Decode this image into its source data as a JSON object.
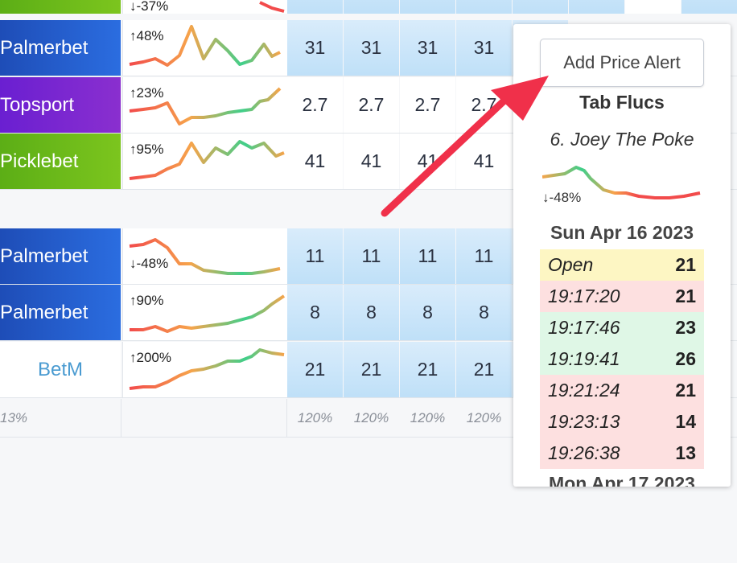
{
  "rows": [
    {
      "bookmaker": "Palmerbet",
      "change": "↑48%",
      "odds": [
        "31",
        "31",
        "31",
        "31"
      ],
      "color_from": "#1e4db7",
      "color_to": "#2b6de0",
      "style": "blue"
    },
    {
      "bookmaker": "Topsport",
      "change": "↑23%",
      "odds": [
        "2.7",
        "2.7",
        "2.7",
        "2.7"
      ],
      "color_from": "#6a1fd1",
      "color_to": "#8a2fcf",
      "style": "white"
    },
    {
      "bookmaker": "Picklebet",
      "change": "↑95%",
      "odds": [
        "41",
        "41",
        "41",
        "41"
      ],
      "color_from": "#5cae16",
      "color_to": "#7cc51e",
      "style": "white"
    },
    {
      "bookmaker": "Palmerbet",
      "change": "↓-48%",
      "odds": [
        "11",
        "11",
        "11",
        "11"
      ],
      "color_from": "#1e4db7",
      "color_to": "#2b6de0",
      "style": "blue"
    },
    {
      "bookmaker": "Palmerbet",
      "change": "↑90%",
      "odds": [
        "8",
        "8",
        "8",
        "8"
      ],
      "color_from": "#1e4db7",
      "color_to": "#2b6de0",
      "style": "blue"
    },
    {
      "bookmaker": "BetM",
      "change": "↑200%",
      "odds": [
        "21",
        "21",
        "21",
        "21"
      ],
      "color_from": "#ffffff",
      "color_to": "#ffffff",
      "style": "blue"
    }
  ],
  "top_partial": {
    "change": "↓-37%"
  },
  "footer": {
    "first": "13%",
    "markets": [
      "120%",
      "120%",
      "120%",
      "120%"
    ]
  },
  "popup": {
    "alert_button": "Add Price Alert",
    "title": "Tab Flucs",
    "runner": "6. Joey The Poke",
    "change": "↓-48%",
    "date1": "Sun Apr 16 2023",
    "date2": "Mon Apr 17 2023",
    "flucs": [
      {
        "time": "Open",
        "value": "21",
        "bg": "#fdf6c3"
      },
      {
        "time": "19:17:20",
        "value": "21",
        "bg": "#fde0e0"
      },
      {
        "time": "19:17:46",
        "value": "23",
        "bg": "#dff7e6"
      },
      {
        "time": "19:19:41",
        "value": "26",
        "bg": "#dff7e6"
      },
      {
        "time": "19:21:24",
        "value": "21",
        "bg": "#fde0e0"
      },
      {
        "time": "19:23:13",
        "value": "14",
        "bg": "#fde0e0"
      },
      {
        "time": "19:26:38",
        "value": "13",
        "bg": "#fde0e0"
      }
    ]
  },
  "colors": {
    "arrow": "#f0304a",
    "betm_text": "#4a9bd1"
  }
}
